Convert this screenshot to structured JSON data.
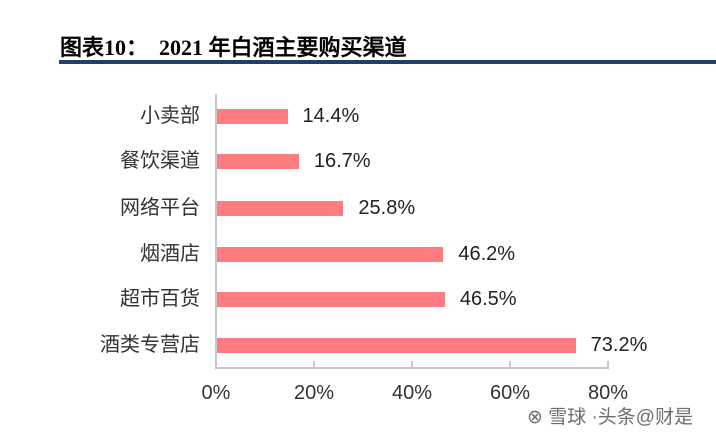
{
  "title": "图表10：  2021 年白酒主要购买渠道",
  "watermark": "⊗ 雪球 ·头条@财是",
  "chart_data": {
    "type": "bar",
    "orientation": "horizontal",
    "title": "2021 年白酒主要购买渠道",
    "categories": [
      "小卖部",
      "餐饮渠道",
      "网络平台",
      "烟酒店",
      "超市百货",
      "酒类专营店"
    ],
    "values": [
      14.4,
      16.7,
      25.8,
      46.2,
      46.5,
      73.2
    ],
    "value_labels": [
      "14.4%",
      "16.7%",
      "25.8%",
      "46.2%",
      "46.5%",
      "73.2%"
    ],
    "xlabel": "",
    "ylabel": "",
    "xlim": [
      0,
      80
    ],
    "xticks": [
      "0%",
      "20%",
      "40%",
      "60%",
      "80%"
    ],
    "bar_color": "#ff7c80",
    "grid": false,
    "legend": null
  }
}
